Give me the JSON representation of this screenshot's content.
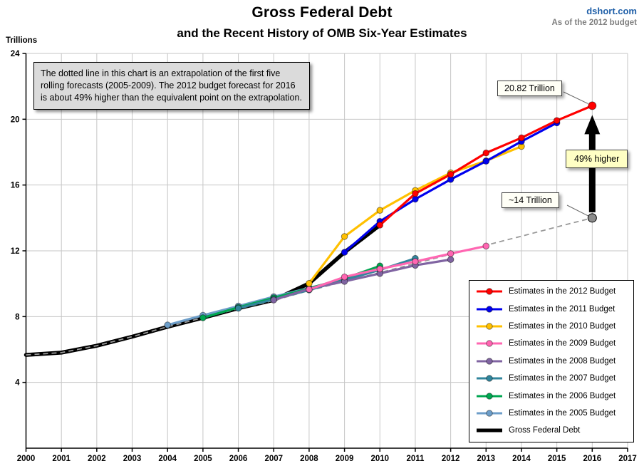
{
  "branding": {
    "site": "dshort.com",
    "as_of": "As of the 2012 budget"
  },
  "header": {
    "title": "Gross Federal Debt",
    "subtitle": "and the Recent History of OMB Six-Year Estimates"
  },
  "annotations": {
    "note": "The dotted line in this chart is an extrapolation of the first five rolling forecasts (2005-2009). The 2012 budget forecast for 2016 is about 49% higher than the equivalent point on the extrapolation.",
    "high_label": "20.82 Trillion",
    "low_label": "~14 Trillion",
    "arrow_label": "49% higher"
  },
  "chart_data": {
    "type": "line",
    "title": "Gross Federal Debt and the Recent History of OMB Six-Year Estimates",
    "xlabel": "",
    "ylabel": "Trillions",
    "xlim": [
      2000,
      2017
    ],
    "ylim": [
      0,
      24
    ],
    "x_ticks": [
      2000,
      2001,
      2002,
      2003,
      2004,
      2005,
      2006,
      2007,
      2008,
      2009,
      2010,
      2011,
      2012,
      2013,
      2014,
      2015,
      2016,
      2017
    ],
    "y_ticks": [
      4,
      8,
      12,
      16,
      20,
      24
    ],
    "grid": true,
    "legend_position": "lower right",
    "series": [
      {
        "key": "est-2012",
        "label": "Estimates in the 2012 Budget",
        "color": "#FF0000",
        "marker": true,
        "x": [
          2010,
          2011,
          2012,
          2013,
          2014,
          2015,
          2016
        ],
        "values": [
          13.56,
          15.48,
          16.65,
          17.95,
          18.87,
          19.92,
          20.82
        ]
      },
      {
        "key": "est-2011",
        "label": "Estimates in the 2011 Budget",
        "color": "#0000EE",
        "marker": true,
        "x": [
          2009,
          2010,
          2011,
          2012,
          2013,
          2014,
          2015
        ],
        "values": [
          11.91,
          13.79,
          15.14,
          16.34,
          17.45,
          18.65,
          19.78
        ]
      },
      {
        "key": "est-2010",
        "label": "Estimates in the 2010 Budget",
        "color": "#FFC000",
        "marker": true,
        "x": [
          2008,
          2009,
          2010,
          2011,
          2012,
          2013,
          2014
        ],
        "values": [
          10.02,
          12.87,
          14.46,
          15.67,
          16.74,
          17.47,
          18.35
        ]
      },
      {
        "key": "est-2009",
        "label": "Estimates in the 2009 Budget",
        "color": "#FF66B2",
        "marker": true,
        "x": [
          2008,
          2009,
          2010,
          2011,
          2012,
          2013
        ],
        "values": [
          9.65,
          10.41,
          10.9,
          11.35,
          11.83,
          12.29
        ]
      },
      {
        "key": "est-2008",
        "label": "Estimates in the 2008 Budget",
        "color": "#8064A2",
        "marker": true,
        "x": [
          2007,
          2008,
          2009,
          2010,
          2011,
          2012
        ],
        "values": [
          9.01,
          9.69,
          10.14,
          10.62,
          11.12,
          11.47
        ]
      },
      {
        "key": "est-2007",
        "label": "Estimates in the 2007 Budget",
        "color": "#31859C",
        "marker": true,
        "x": [
          2006,
          2007,
          2008,
          2009,
          2010,
          2011
        ],
        "values": [
          8.51,
          9.05,
          9.62,
          10.23,
          10.84,
          11.54
        ]
      },
      {
        "key": "est-2006",
        "label": "Estimates in the 2006 Budget",
        "color": "#00A651",
        "marker": true,
        "x": [
          2005,
          2006,
          2007,
          2008,
          2009,
          2010
        ],
        "values": [
          7.93,
          8.56,
          9.14,
          9.72,
          10.32,
          11.08
        ]
      },
      {
        "key": "est-2005",
        "label": "Estimates in the 2005 Budget",
        "color": "#6D9EC9",
        "marker": true,
        "x": [
          2004,
          2005,
          2006,
          2007,
          2008,
          2009
        ],
        "values": [
          7.49,
          8.08,
          8.64,
          9.21,
          9.74,
          10.26
        ]
      },
      {
        "key": "gross-federal-debt",
        "label": "Gross Federal Debt",
        "color": "#000000",
        "marker": false,
        "thick": true,
        "x": [
          2000,
          2001,
          2002,
          2003,
          2004,
          2005,
          2006,
          2007,
          2008,
          2009,
          2010
        ],
        "values": [
          5.67,
          5.81,
          6.23,
          6.78,
          7.38,
          7.93,
          8.51,
          9.01,
          10.02,
          11.91,
          13.56
        ]
      }
    ],
    "extrapolation": {
      "label": "Extrapolation of the 2005-2009 forecasts",
      "color": "#999999",
      "dashed": true,
      "x": [
        2000,
        2001,
        2002,
        2003,
        2004,
        2005,
        2006,
        2007,
        2008,
        2009,
        2010,
        2011,
        2012,
        2013,
        2014,
        2015,
        2016
      ],
      "values": [
        5.67,
        5.81,
        6.23,
        6.78,
        7.38,
        7.93,
        8.48,
        8.98,
        9.58,
        10.13,
        10.68,
        11.23,
        11.79,
        12.34,
        12.89,
        13.45,
        14.0
      ]
    },
    "end_dot": {
      "x": 2016,
      "value": 14.0,
      "color": "#8C8C8C",
      "label": "~14 Trillion"
    },
    "highlight_point": {
      "x": 2016,
      "value": 20.82,
      "label": "20.82 Trillion"
    }
  }
}
